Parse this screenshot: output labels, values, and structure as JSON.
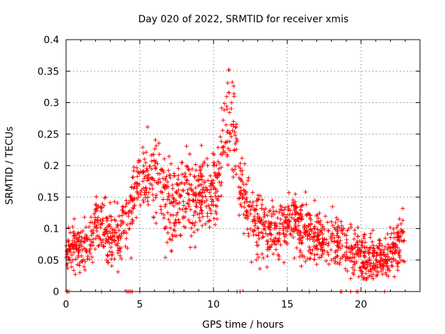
{
  "chart_data": {
    "type": "scatter",
    "title": "Day 020 of 2022, SRMTID for receiver xmis",
    "xlabel": "GPS time / hours",
    "ylabel": "SRMTID / TECUs",
    "xlim": [
      0,
      24
    ],
    "ylim": [
      0,
      0.4
    ],
    "xticks": [
      0,
      5,
      10,
      15,
      20
    ],
    "xtick_labels": [
      "0",
      "5",
      "10",
      "15",
      "20"
    ],
    "yticks": [
      0,
      0.05,
      0.1,
      0.15,
      0.2,
      0.25,
      0.3,
      0.35,
      0.4
    ],
    "ytick_labels": [
      "0",
      "0.05",
      "0.1",
      "0.15",
      "0.2",
      "0.25",
      "0.3",
      "0.35",
      "0.4"
    ],
    "grid": true,
    "marker": "+",
    "color": "#ff0000",
    "trend": {
      "x": [
        0,
        0.5,
        1,
        1.5,
        2,
        2.5,
        3,
        3.5,
        4,
        4.5,
        5,
        5.5,
        6,
        6.5,
        7,
        7.5,
        8,
        8.5,
        9,
        9.5,
        10,
        10.5,
        11,
        11.5,
        12,
        12.5,
        13,
        13.5,
        14,
        14.5,
        15,
        15.5,
        16,
        16.5,
        17,
        17.5,
        18,
        18.5,
        19,
        19.5,
        20,
        20.5,
        21,
        21.5,
        22,
        22.5,
        23
      ],
      "y": [
        0.06,
        0.075,
        0.07,
        0.065,
        0.12,
        0.105,
        0.085,
        0.085,
        0.11,
        0.13,
        0.17,
        0.18,
        0.17,
        0.165,
        0.14,
        0.14,
        0.16,
        0.15,
        0.15,
        0.16,
        0.165,
        0.2,
        0.28,
        0.24,
        0.15,
        0.12,
        0.1,
        0.095,
        0.1,
        0.095,
        0.11,
        0.11,
        0.1,
        0.09,
        0.09,
        0.085,
        0.08,
        0.075,
        0.07,
        0.065,
        0.055,
        0.05,
        0.05,
        0.055,
        0.06,
        0.08,
        0.09
      ]
    },
    "spread": {
      "x": [
        0,
        2,
        4,
        5,
        6,
        8,
        10,
        11,
        12,
        14,
        17,
        20,
        22,
        23
      ],
      "y": [
        0.025,
        0.03,
        0.035,
        0.045,
        0.05,
        0.05,
        0.045,
        0.06,
        0.04,
        0.035,
        0.03,
        0.025,
        0.025,
        0.03
      ]
    },
    "points_per_hour": 75,
    "points_xmax": 23,
    "zero_points_x": [
      0.05,
      0.1,
      0.2,
      2.4,
      4.1,
      4.2,
      4.3,
      4.4,
      4.5,
      5.0,
      7.3,
      11.6,
      11.8,
      16.5,
      18.6,
      18.7,
      19.3,
      19.7,
      19.8,
      20.3,
      21.6
    ]
  }
}
